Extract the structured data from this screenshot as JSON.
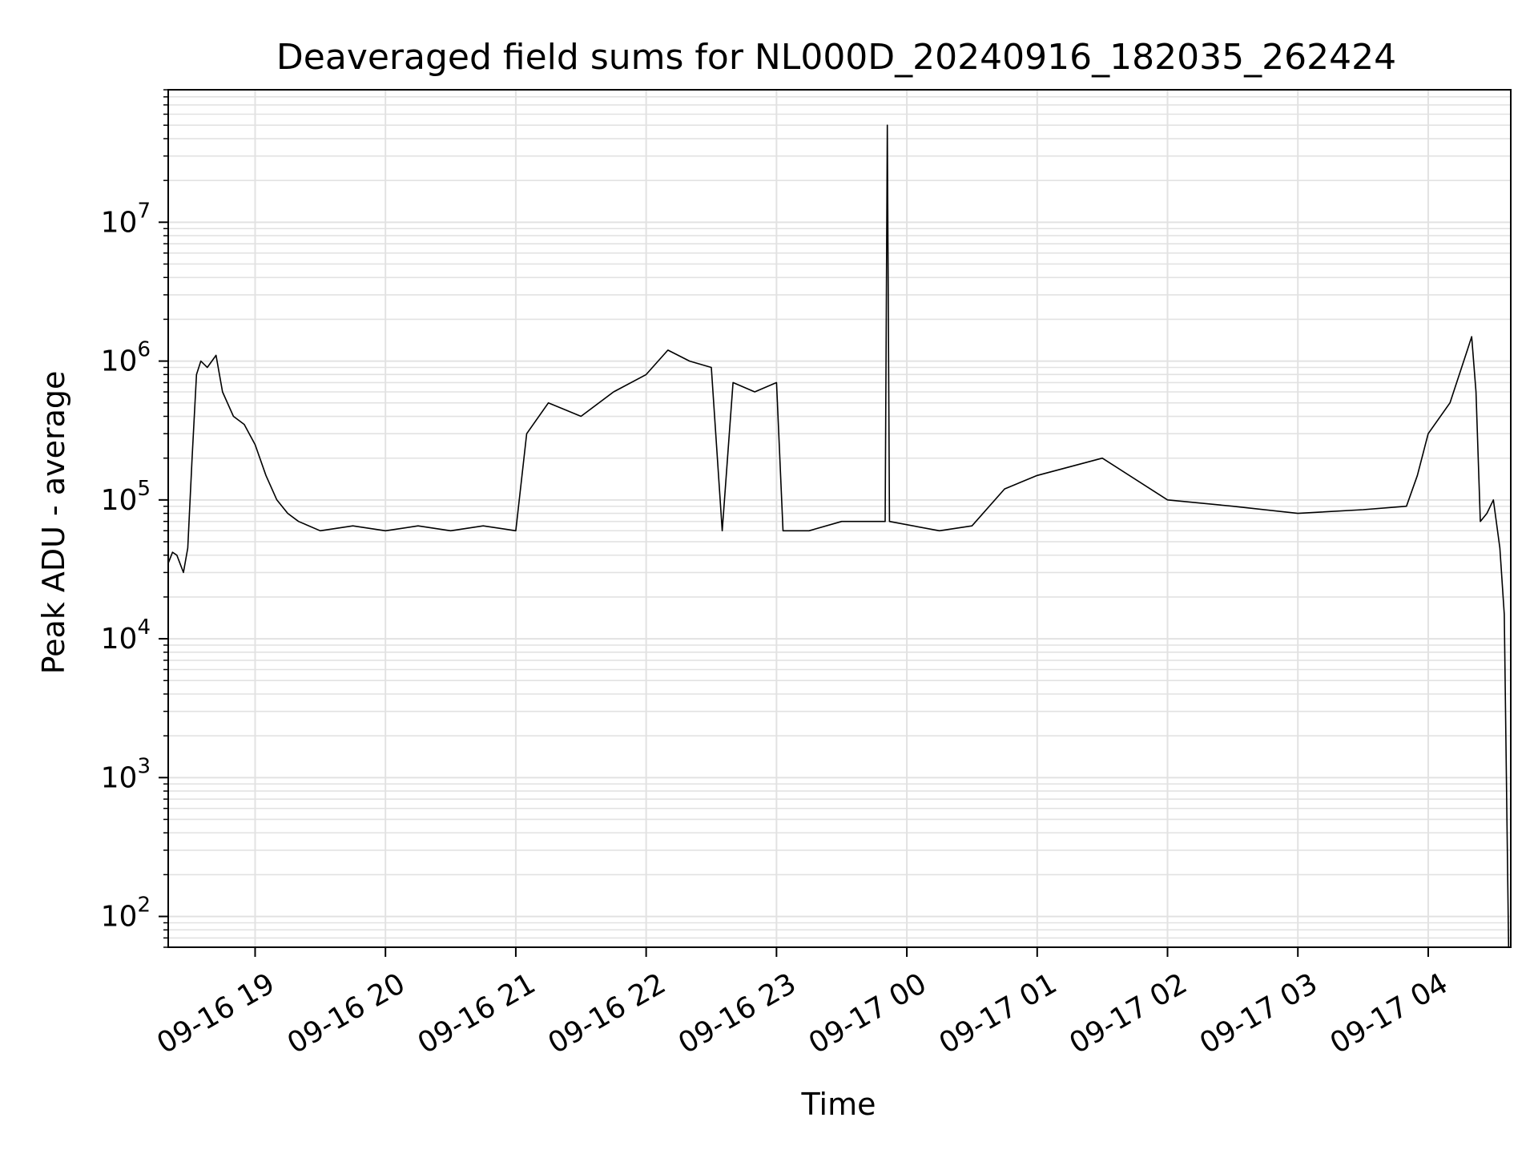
{
  "chart_data": {
    "type": "line",
    "title": "Deaveraged field sums for NL000D_20240916_182035_262424",
    "xlabel": "Time",
    "ylabel": "Peak ADU - average",
    "y_scale": "log",
    "ylim": [
      60,
      90000000
    ],
    "xlim": [
      "2024-09-16 18:20",
      "2024-09-17 04:38"
    ],
    "grid": true,
    "line_color": "#000000",
    "x_ticks": [
      {
        "t": "2024-09-16 19:00",
        "label": "09-16 19"
      },
      {
        "t": "2024-09-16 20:00",
        "label": "09-16 20"
      },
      {
        "t": "2024-09-16 21:00",
        "label": "09-16 21"
      },
      {
        "t": "2024-09-16 22:00",
        "label": "09-16 22"
      },
      {
        "t": "2024-09-16 23:00",
        "label": "09-16 23"
      },
      {
        "t": "2024-09-17 00:00",
        "label": "09-17 00"
      },
      {
        "t": "2024-09-17 01:00",
        "label": "09-17 01"
      },
      {
        "t": "2024-09-17 02:00",
        "label": "09-17 02"
      },
      {
        "t": "2024-09-17 03:00",
        "label": "09-17 03"
      },
      {
        "t": "2024-09-17 04:00",
        "label": "09-17 04"
      }
    ],
    "y_ticks": [
      {
        "value": 100,
        "base": "10",
        "exp": "2"
      },
      {
        "value": 1000,
        "base": "10",
        "exp": "3"
      },
      {
        "value": 10000,
        "base": "10",
        "exp": "4"
      },
      {
        "value": 100000,
        "base": "10",
        "exp": "5"
      },
      {
        "value": 1000000,
        "base": "10",
        "exp": "6"
      },
      {
        "value": 10000000,
        "base": "10",
        "exp": "7"
      }
    ],
    "series": [
      {
        "points": [
          [
            "2024-09-16 18:20",
            35000
          ],
          [
            "2024-09-16 18:22",
            42000
          ],
          [
            "2024-09-16 18:24",
            40000
          ],
          [
            "2024-09-16 18:27",
            30000
          ],
          [
            "2024-09-16 18:29",
            45000
          ],
          [
            "2024-09-16 18:31",
            200000
          ],
          [
            "2024-09-16 18:33",
            800000
          ],
          [
            "2024-09-16 18:35",
            1000000
          ],
          [
            "2024-09-16 18:38",
            900000
          ],
          [
            "2024-09-16 18:42",
            1100000
          ],
          [
            "2024-09-16 18:45",
            600000
          ],
          [
            "2024-09-16 18:50",
            400000
          ],
          [
            "2024-09-16 18:55",
            350000
          ],
          [
            "2024-09-16 19:00",
            250000
          ],
          [
            "2024-09-16 19:05",
            150000
          ],
          [
            "2024-09-16 19:10",
            100000
          ],
          [
            "2024-09-16 19:15",
            80000
          ],
          [
            "2024-09-16 19:20",
            70000
          ],
          [
            "2024-09-16 19:30",
            60000
          ],
          [
            "2024-09-16 19:45",
            65000
          ],
          [
            "2024-09-16 20:00",
            60000
          ],
          [
            "2024-09-16 20:15",
            65000
          ],
          [
            "2024-09-16 20:30",
            60000
          ],
          [
            "2024-09-16 20:45",
            65000
          ],
          [
            "2024-09-16 21:00",
            60000
          ],
          [
            "2024-09-16 21:05",
            300000
          ],
          [
            "2024-09-16 21:15",
            500000
          ],
          [
            "2024-09-16 21:30",
            400000
          ],
          [
            "2024-09-16 21:45",
            600000
          ],
          [
            "2024-09-16 22:00",
            800000
          ],
          [
            "2024-09-16 22:10",
            1200000
          ],
          [
            "2024-09-16 22:20",
            1000000
          ],
          [
            "2024-09-16 22:30",
            900000
          ],
          [
            "2024-09-16 22:35",
            60000
          ],
          [
            "2024-09-16 22:40",
            700000
          ],
          [
            "2024-09-16 22:50",
            600000
          ],
          [
            "2024-09-16 23:00",
            700000
          ],
          [
            "2024-09-16 23:03",
            60000
          ],
          [
            "2024-09-16 23:15",
            60000
          ],
          [
            "2024-09-16 23:30",
            70000
          ],
          [
            "2024-09-16 23:50",
            70000
          ],
          [
            "2024-09-16 23:51",
            50000000
          ],
          [
            "2024-09-16 23:52",
            70000
          ],
          [
            "2024-09-17 00:15",
            60000
          ],
          [
            "2024-09-17 00:30",
            65000
          ],
          [
            "2024-09-17 00:45",
            120000
          ],
          [
            "2024-09-17 01:00",
            150000
          ],
          [
            "2024-09-17 01:30",
            200000
          ],
          [
            "2024-09-17 02:00",
            100000
          ],
          [
            "2024-09-17 02:30",
            90000
          ],
          [
            "2024-09-17 03:00",
            80000
          ],
          [
            "2024-09-17 03:30",
            85000
          ],
          [
            "2024-09-17 03:50",
            90000
          ],
          [
            "2024-09-17 03:55",
            150000
          ],
          [
            "2024-09-17 04:00",
            300000
          ],
          [
            "2024-09-17 04:10",
            500000
          ],
          [
            "2024-09-17 04:18",
            1200000
          ],
          [
            "2024-09-17 04:20",
            1500000
          ],
          [
            "2024-09-17 04:22",
            600000
          ],
          [
            "2024-09-17 04:24",
            70000
          ],
          [
            "2024-09-17 04:27",
            80000
          ],
          [
            "2024-09-17 04:30",
            100000
          ],
          [
            "2024-09-17 04:33",
            45000
          ],
          [
            "2024-09-17 04:35",
            15000
          ],
          [
            "2024-09-17 04:37",
            60
          ]
        ]
      }
    ]
  }
}
